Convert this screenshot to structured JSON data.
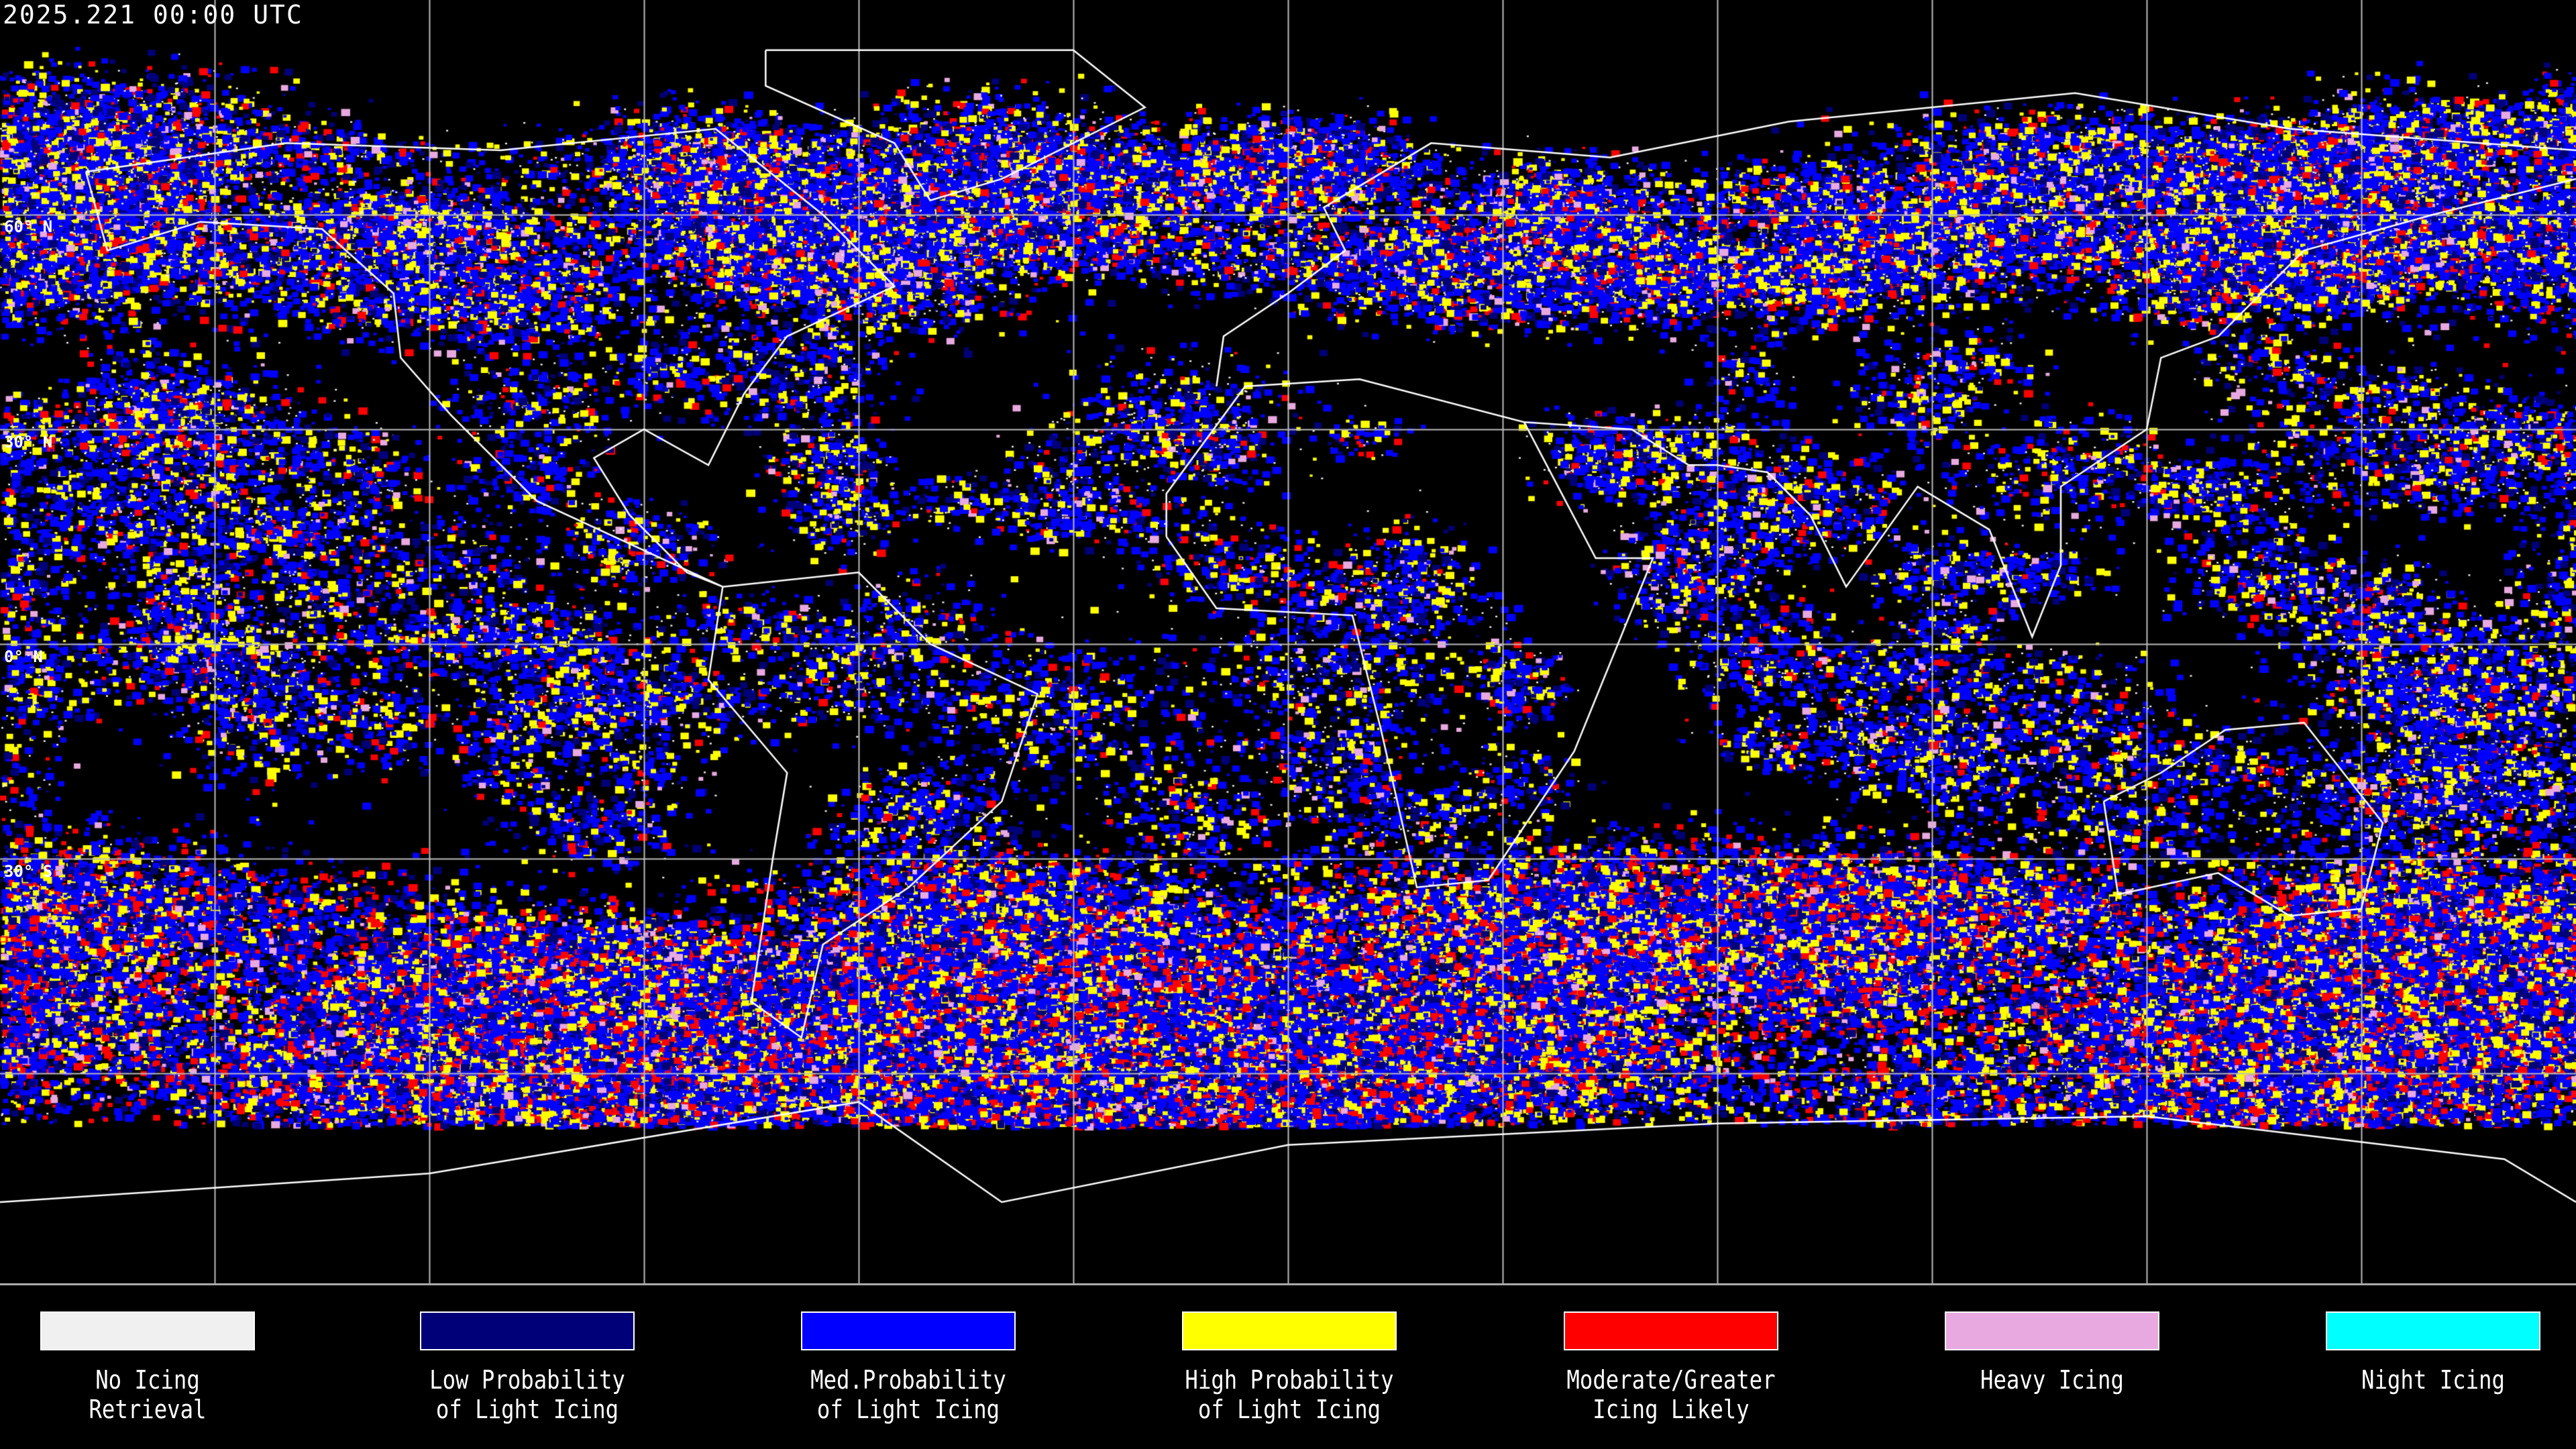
{
  "header": {
    "timestamp": "2025.221 00:00 UTC"
  },
  "map": {
    "projection": "equirectangular global",
    "gridlines": true,
    "grid_spacing_degrees": 30,
    "lat_labels": [
      "60° N",
      "30° N",
      "0° N",
      "30° S"
    ],
    "coastline_color": "#ffffff",
    "background": "#000000"
  },
  "legend": [
    {
      "line1": "No Icing",
      "line2": "Retrieval",
      "color": "#f0f0f0"
    },
    {
      "line1": "Low Probability",
      "line2": "of Light Icing",
      "color": "#000078"
    },
    {
      "line1": "Med.Probability",
      "line2": "of Light Icing",
      "color": "#0000ff"
    },
    {
      "line1": "High Probability",
      "line2": "of Light Icing",
      "color": "#ffff00"
    },
    {
      "line1": "Moderate/Greater",
      "line2": "Icing Likely",
      "color": "#ff0000"
    },
    {
      "line1": "Heavy Icing",
      "line2": "",
      "color": "#e8a8e0"
    },
    {
      "line1": "Night Icing",
      "line2": "",
      "color": "#00ffff"
    }
  ]
}
